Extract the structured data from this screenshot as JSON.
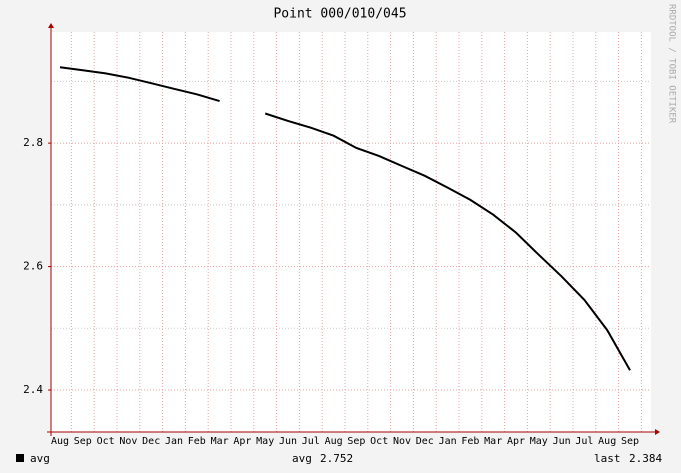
{
  "chart_data": {
    "type": "line",
    "title": "Point 000/010/045",
    "watermark": "RRDTOOL / TOBI OETIKER",
    "categories": [
      "Aug",
      "Sep",
      "Oct",
      "Nov",
      "Dec",
      "Jan",
      "Feb",
      "Mar",
      "Apr",
      "May",
      "Jun",
      "Jul",
      "Aug",
      "Sep",
      "Oct",
      "Nov",
      "Dec",
      "Jan",
      "Feb",
      "Mar",
      "Apr",
      "May",
      "Jun",
      "Jul",
      "Aug",
      "Sep"
    ],
    "series": [
      {
        "name": "avg",
        "color": "#000000",
        "values": [
          2.923,
          2.918,
          2.913,
          2.906,
          2.897,
          2.888,
          2.879,
          2.868,
          null,
          2.848,
          2.836,
          2.825,
          2.812,
          2.792,
          2.779,
          2.763,
          2.747,
          2.728,
          2.708,
          2.684,
          2.655,
          2.619,
          2.584,
          2.546,
          2.497,
          2.432
        ]
      }
    ],
    "ylim": [
      2.332,
      2.98
    ],
    "yticks": [
      2.4,
      2.6,
      2.8
    ],
    "minor_yticks": [
      2.5,
      2.7,
      2.9
    ],
    "grid": true,
    "legend": {
      "avg_label": "avg",
      "avg": 2.752,
      "last_label": "last",
      "last": 2.384
    }
  }
}
